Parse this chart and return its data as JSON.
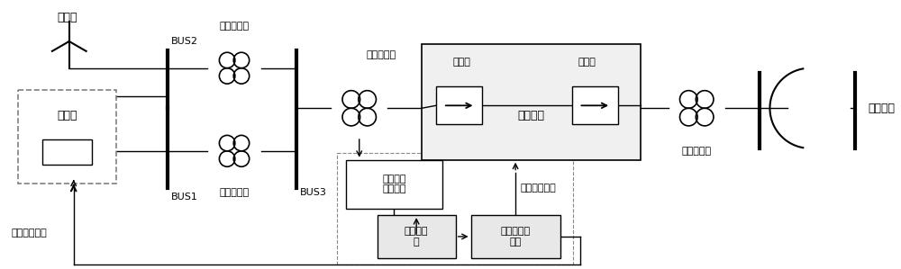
{
  "bg_color": "#ffffff",
  "line_color": "#000000",
  "font_size": 8,
  "labels": {
    "wind_farm": "风电场",
    "thermal_plant": "火电厂",
    "bus1": "BUS1",
    "bus2": "BUS2",
    "bus3": "BUS3",
    "step_up1": "升压变压器",
    "step_up2": "升压变压器",
    "step_up3": "升压变压器",
    "step_down": "降压变压器",
    "rectifier_side": "整流侧",
    "inverter_side": "逆变侧",
    "dc_system": "直流系统",
    "ac_system": "交流系统",
    "freq_collect": "频率信号\n采集单元",
    "fault_detect": "故障检测\n器",
    "emergency_ctrl": "紧急频率控\n制器",
    "thermal_ctrl": "火电控制信号",
    "dc_ctrl": "直流控制信号"
  }
}
